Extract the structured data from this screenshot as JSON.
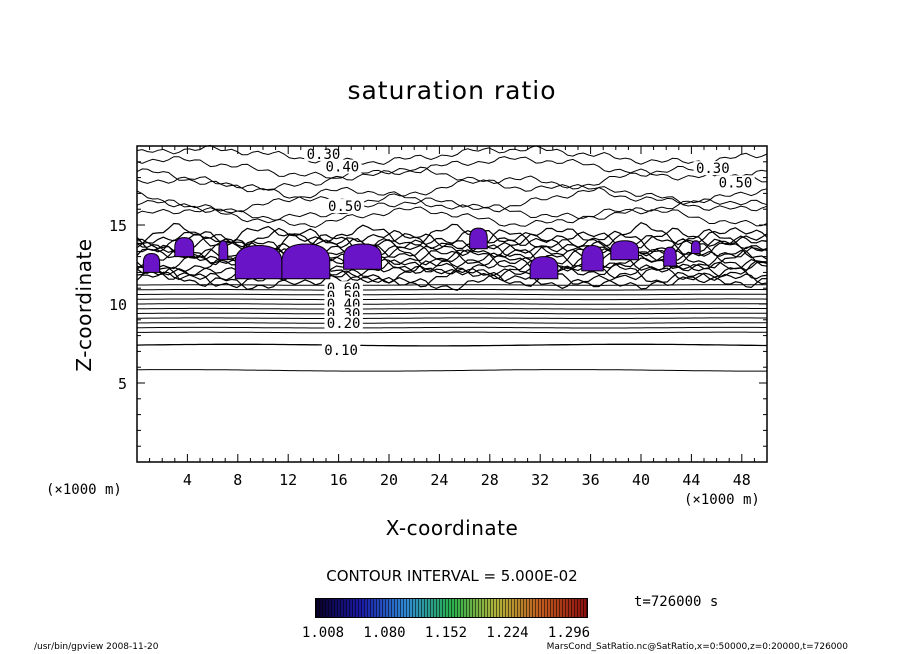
{
  "chart_data": {
    "type": "heatmap",
    "title": "saturation ratio",
    "xlabel": "X-coordinate",
    "ylabel": "Z-coordinate",
    "x_units": "(×1000 m)",
    "y_units": "(×1000 m)",
    "xlim": [
      0,
      50
    ],
    "ylim": [
      0,
      20
    ],
    "x_ticks": [
      4,
      8,
      12,
      16,
      20,
      24,
      28,
      32,
      36,
      40,
      44,
      48
    ],
    "y_ticks": [
      5,
      10,
      15
    ],
    "contour_interval": "CONTOUR INTERVAL = 5.000E-02",
    "time": "t=726000 s",
    "colorbar_labels": [
      "1.008",
      "1.080",
      "1.152",
      "1.224",
      "1.296"
    ],
    "colorbar_colors": [
      "#0a0028",
      "#1b1aa8",
      "#2f8bd6",
      "#29b14e",
      "#b2b43a",
      "#c25a1e",
      "#8c0f0f"
    ],
    "contour_labels": [
      {
        "text": "0.30",
        "x": 14.8,
        "z": 19.5
      },
      {
        "text": "0.40",
        "x": 16.3,
        "z": 18.7
      },
      {
        "text": "0.50",
        "x": 16.5,
        "z": 16.2
      },
      {
        "text": "0.30",
        "x": 45.7,
        "z": 18.6
      },
      {
        "text": "0.50",
        "x": 47.5,
        "z": 17.7
      },
      {
        "text": "0.60",
        "x": 16.4,
        "z": 11.0
      },
      {
        "text": "0.50",
        "x": 16.4,
        "z": 10.5
      },
      {
        "text": "0.40",
        "x": 16.4,
        "z": 10.0
      },
      {
        "text": "0.30",
        "x": 16.4,
        "z": 9.4
      },
      {
        "text": "0.20",
        "x": 16.4,
        "z": 8.8
      },
      {
        "text": "0.10",
        "x": 16.2,
        "z": 7.1
      }
    ],
    "supersaturated_regions": [
      {
        "x_range": [
          0.5,
          1.8
        ],
        "z_range": [
          12.0,
          13.2
        ]
      },
      {
        "x_range": [
          3.0,
          4.5
        ],
        "z_range": [
          13.0,
          14.2
        ]
      },
      {
        "x_range": [
          6.5,
          7.2
        ],
        "z_range": [
          12.8,
          14.0
        ]
      },
      {
        "x_range": [
          7.8,
          11.5
        ],
        "z_range": [
          11.6,
          13.7
        ]
      },
      {
        "x_range": [
          11.5,
          15.3
        ],
        "z_range": [
          11.6,
          13.8
        ]
      },
      {
        "x_range": [
          16.4,
          19.4
        ],
        "z_range": [
          12.2,
          13.8
        ]
      },
      {
        "x_range": [
          26.4,
          27.8
        ],
        "z_range": [
          13.5,
          14.8
        ]
      },
      {
        "x_range": [
          31.2,
          33.4
        ],
        "z_range": [
          11.6,
          13.0
        ]
      },
      {
        "x_range": [
          35.3,
          37.0
        ],
        "z_range": [
          12.1,
          13.7
        ]
      },
      {
        "x_range": [
          37.6,
          39.8
        ],
        "z_range": [
          12.8,
          14.0
        ]
      },
      {
        "x_range": [
          41.8,
          42.8
        ],
        "z_range": [
          12.4,
          13.6
        ]
      },
      {
        "x_range": [
          44.0,
          44.7
        ],
        "z_range": [
          13.2,
          14.0
        ]
      }
    ]
  },
  "footer": {
    "left": "/usr/bin/gpview   2008-11-20",
    "right": "MarsCond_SatRatio.nc@SatRatio,x=0:50000,z=0:20000,t=726000"
  }
}
